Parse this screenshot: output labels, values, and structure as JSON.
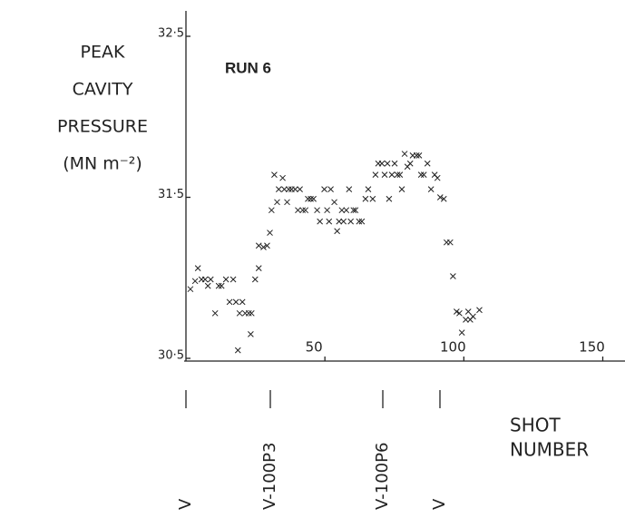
{
  "chart_data": {
    "type": "scatter",
    "title": "RUN 6",
    "ylabel_lines": [
      "PEAK",
      "CAVITY",
      "PRESSURE",
      "(MN m⁻²)"
    ],
    "xlabel_lines": [
      "SHOT",
      "NUMBER"
    ],
    "annotations": [
      "V",
      "V-100P3",
      "V-100P6",
      "V"
    ],
    "xlim": [
      0,
      158
    ],
    "ylim": [
      30.5,
      32.5
    ],
    "xticks": [
      50,
      100,
      150
    ],
    "yticks": [
      {
        "value": 30.5,
        "label": "30·5"
      },
      {
        "value": 31.5,
        "label": "31·5"
      },
      {
        "value": 32.5,
        "label": "32·5"
      }
    ],
    "color": "#222222",
    "x": [
      1.6,
      3.3,
      4.3,
      5.6,
      6.9,
      7.9,
      8.9,
      10.5,
      11.8,
      12.8,
      14.4,
      15.7,
      17.0,
      18.0,
      19.3,
      20.3,
      21.3,
      22.6,
      23.6,
      23.3,
      18.7,
      24.9,
      26.2,
      26.2,
      27.9,
      29.2,
      30.2,
      30.8,
      31.8,
      32.8,
      33.4,
      34.8,
      35.4,
      36.4,
      37.0,
      38.0,
      39.3,
      40.3,
      41.0,
      42.0,
      43.0,
      43.9,
      44.9,
      45.9,
      47.2,
      48.2,
      49.8,
      50.8,
      51.5,
      52.1,
      53.4,
      54.4,
      55.1,
      56.1,
      56.7,
      57.7,
      58.7,
      59.3,
      60.3,
      61.0,
      62.3,
      63.3,
      64.6,
      65.6,
      67.2,
      68.2,
      69.2,
      70.5,
      71.5,
      72.5,
      73.1,
      74.1,
      75.1,
      76.1,
      77.0,
      77.7,
      78.7,
      79.7,
      80.7,
      81.6,
      83.0,
      83.9,
      84.6,
      85.6,
      86.9,
      88.2,
      89.5,
      90.5,
      91.5,
      92.8,
      93.8,
      95.1,
      96.1,
      97.4,
      98.4,
      99.3,
      100.7,
      101.6,
      102.3,
      103.3,
      105.6
    ],
    "values": [
      30.93,
      30.98,
      31.06,
      30.99,
      30.99,
      30.95,
      30.99,
      30.78,
      30.95,
      30.95,
      30.99,
      30.85,
      30.99,
      30.85,
      30.78,
      30.85,
      30.78,
      30.78,
      30.78,
      30.65,
      30.55,
      30.99,
      31.06,
      31.2,
      31.19,
      31.2,
      31.28,
      31.42,
      31.64,
      31.47,
      31.55,
      31.62,
      31.55,
      31.47,
      31.55,
      31.55,
      31.55,
      31.42,
      31.55,
      31.42,
      31.42,
      31.49,
      31.49,
      31.49,
      31.42,
      31.35,
      31.55,
      31.42,
      31.35,
      31.55,
      31.47,
      31.29,
      31.35,
      31.42,
      31.35,
      31.42,
      31.55,
      31.35,
      31.42,
      31.42,
      31.35,
      31.35,
      31.49,
      31.55,
      31.49,
      31.64,
      31.71,
      31.71,
      31.64,
      31.71,
      31.49,
      31.64,
      31.71,
      31.64,
      31.64,
      31.55,
      31.77,
      31.69,
      31.71,
      31.76,
      31.76,
      31.76,
      31.64,
      31.64,
      31.71,
      31.55,
      31.64,
      31.62,
      31.5,
      31.49,
      31.22,
      31.22,
      31.01,
      30.79,
      30.78,
      30.66,
      30.74,
      30.79,
      30.74,
      30.76,
      30.8
    ]
  }
}
